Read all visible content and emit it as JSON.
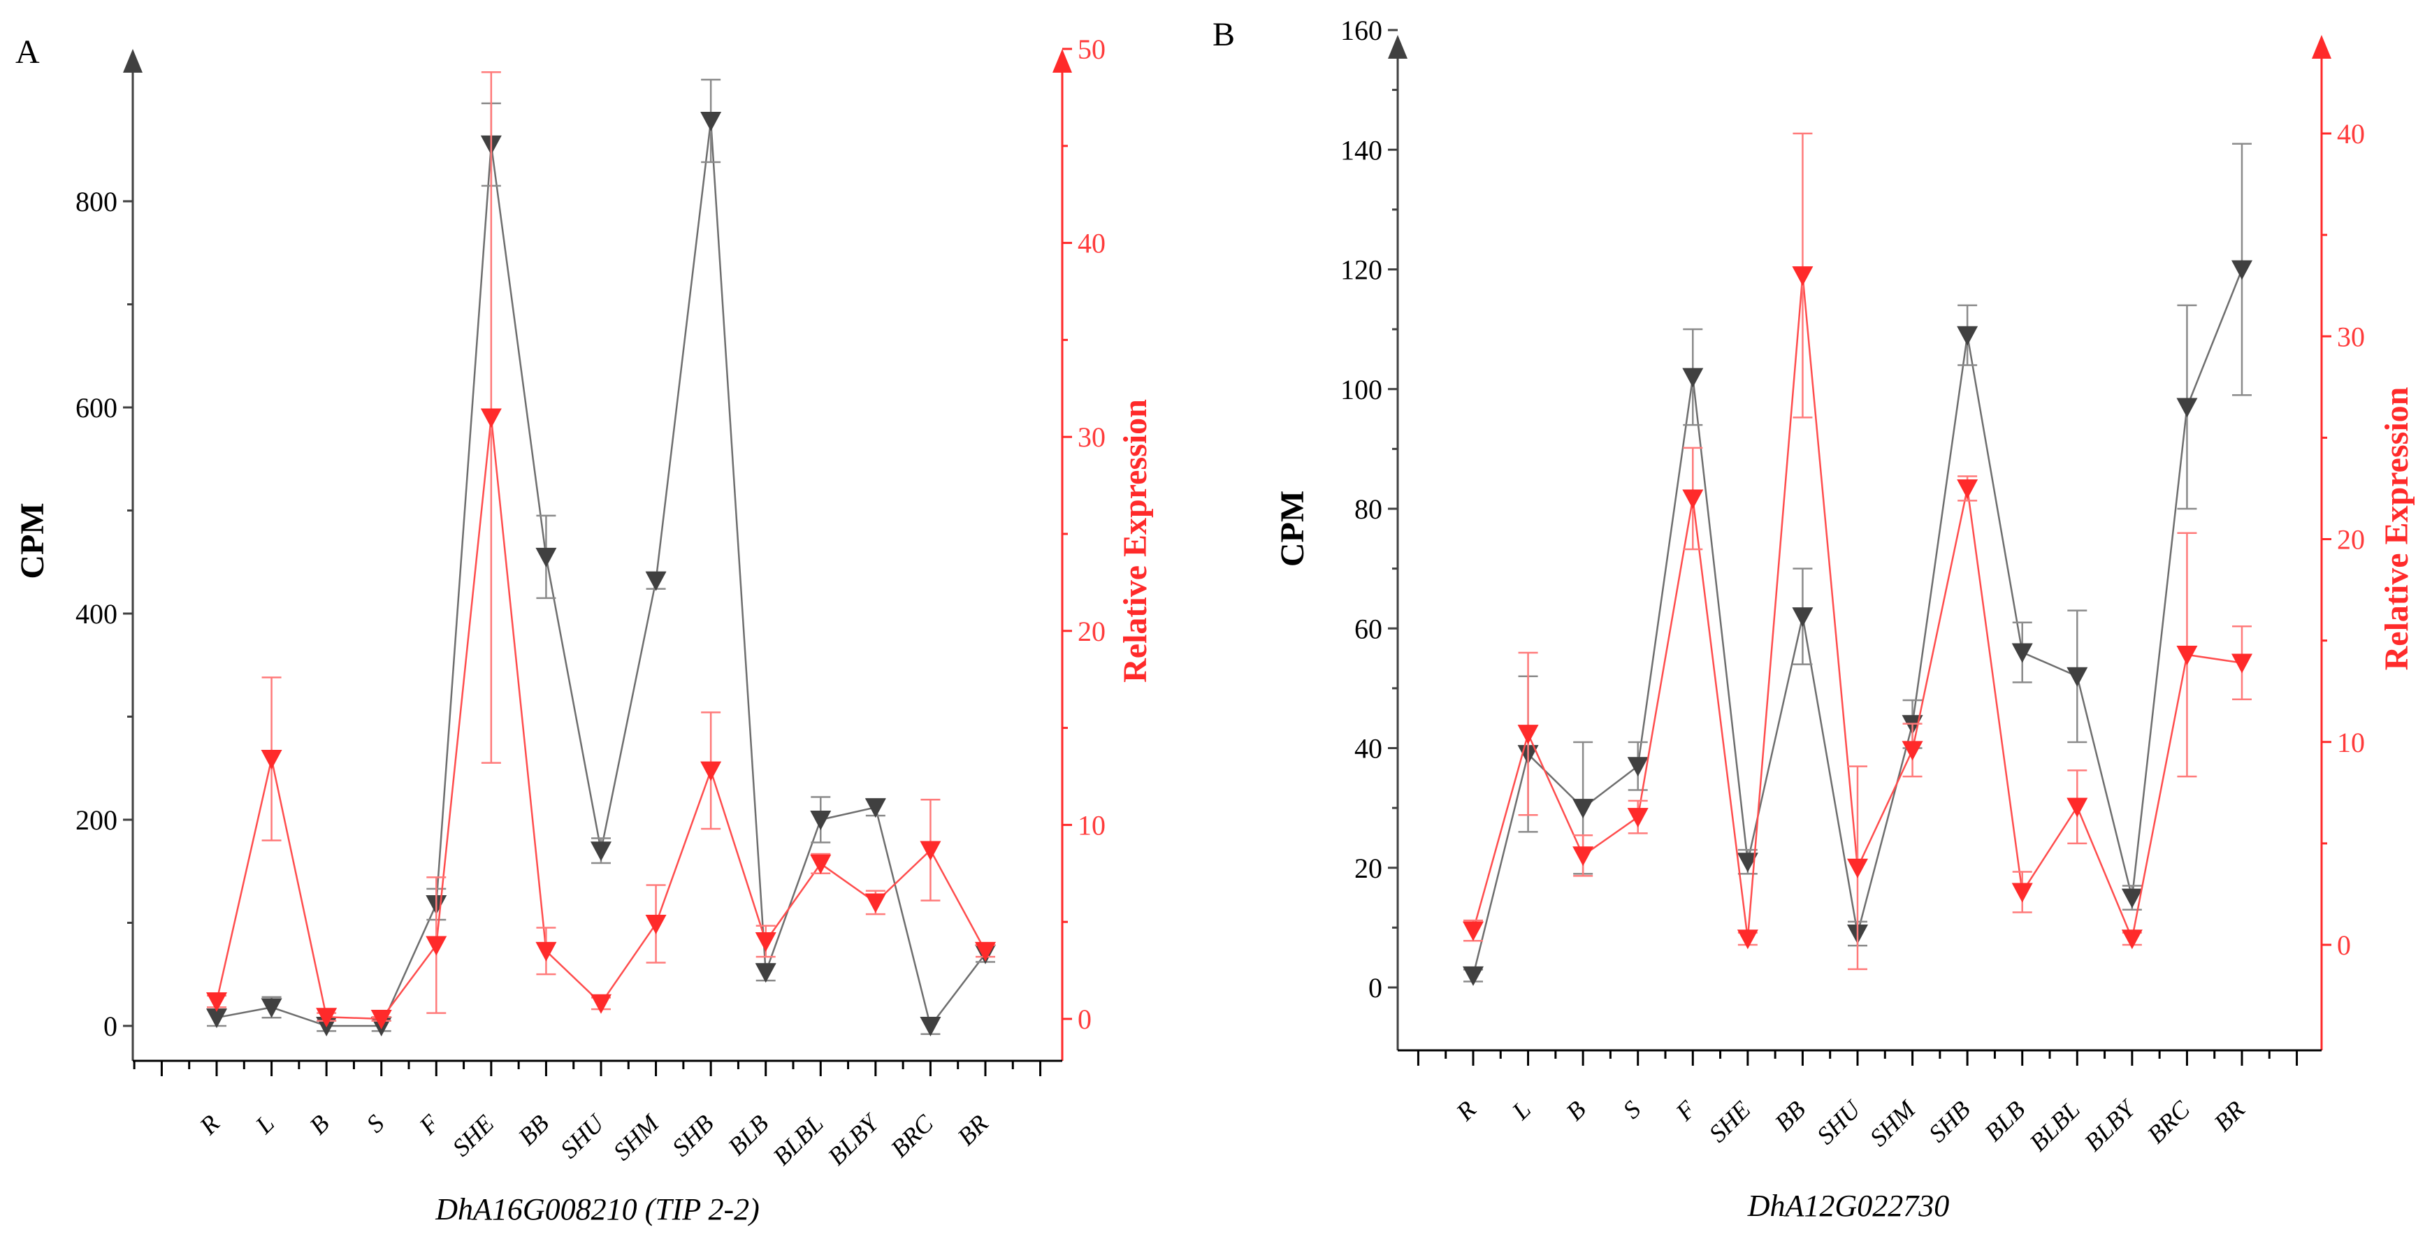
{
  "chart_data": [
    {
      "type": "line",
      "panel": "A",
      "xlabel": "DhA16G008210 (TIP 2-2)",
      "categories": [
        "R",
        "L",
        "B",
        "S",
        "F",
        "SHE",
        "BB",
        "SHU",
        "SHM",
        "SHB",
        "BLB",
        "BLBL",
        "BLBY",
        "BRC",
        "BR"
      ],
      "y_left": {
        "label": "CPM",
        "ylim": [
          -30,
          930
        ],
        "ticks": [
          0,
          200,
          400,
          600,
          800
        ],
        "color": "#404040"
      },
      "y_right": {
        "label": "Relative Expression",
        "ylim": [
          -2,
          50
        ],
        "ticks": [
          0,
          10,
          20,
          30,
          40,
          50
        ],
        "color": "#ff2a2a"
      },
      "series": [
        {
          "axis": "left",
          "color": "#404040",
          "values": [
            8,
            18,
            0,
            0,
            118,
            855,
            455,
            170,
            432,
            878,
            52,
            200,
            212,
            0,
            70
          ],
          "errors": [
            8,
            10,
            5,
            5,
            15,
            40,
            40,
            12,
            8,
            40,
            8,
            22,
            8,
            8,
            8
          ]
        },
        {
          "axis": "right",
          "color": "#ff2a2a",
          "values": [
            0.9,
            13.4,
            0.1,
            0.0,
            3.8,
            31.0,
            3.5,
            0.8,
            4.9,
            12.8,
            4.0,
            8.0,
            6.0,
            8.7,
            3.5
          ],
          "errors": [
            0.3,
            4.2,
            0.2,
            0.1,
            3.5,
            17.8,
            1.2,
            0.3,
            2.0,
            3.0,
            0.8,
            0.5,
            0.6,
            2.6,
            0.3
          ]
        }
      ]
    },
    {
      "type": "line",
      "panel": "B",
      "xlabel": "DhA12G022730",
      "categories": [
        "R",
        "L",
        "B",
        "S",
        "F",
        "SHE",
        "BB",
        "SHU",
        "SHM",
        "SHB",
        "BLB",
        "BLBL",
        "BLBY",
        "BRC",
        "BR"
      ],
      "y_left": {
        "label": "CPM",
        "ylim": [
          -10,
          160
        ],
        "ticks": [
          0,
          20,
          40,
          60,
          80,
          100,
          120,
          140,
          160
        ],
        "color": "#404040"
      },
      "y_right": {
        "label": "Relative Expression",
        "ylim": [
          -5,
          45
        ],
        "ticks": [
          0,
          10,
          20,
          30,
          40
        ],
        "color": "#ff2a2a"
      },
      "series": [
        {
          "axis": "left",
          "color": "#404040",
          "values": [
            2,
            39,
            30,
            37,
            102,
            21,
            62,
            9,
            44,
            109,
            56,
            52,
            15,
            97,
            120
          ],
          "errors": [
            1,
            13,
            11,
            4,
            8,
            2,
            8,
            2,
            4,
            5,
            5,
            11,
            2,
            17,
            21
          ]
        },
        {
          "axis": "right",
          "color": "#ff2a2a",
          "values": [
            0.7,
            10.4,
            4.4,
            6.3,
            22.0,
            0.3,
            33.0,
            3.8,
            9.6,
            22.5,
            2.6,
            6.8,
            0.3,
            14.3,
            13.9
          ],
          "errors": [
            0.5,
            4.0,
            1.0,
            0.8,
            2.5,
            0.3,
            7.0,
            5.0,
            1.3,
            0.6,
            1.0,
            1.8,
            0.3,
            6.0,
            1.8
          ]
        }
      ]
    }
  ]
}
